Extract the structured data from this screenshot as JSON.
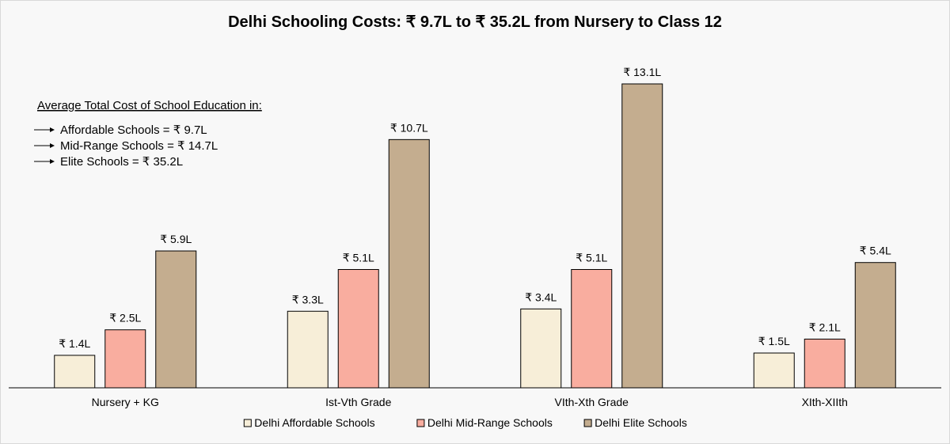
{
  "chart_data": {
    "type": "bar",
    "title": "Delhi Schooling Costs: ₹ 9.7L to ₹ 35.2L from Nursery to Class 12",
    "categories": [
      "Nursery + KG",
      "Ist-Vth Grade",
      "VIth-Xth Grade",
      "XIth-XIIth"
    ],
    "series": [
      {
        "name": "Delhi Affordable Schools",
        "color": "#f7eed8",
        "values": [
          1.4,
          3.3,
          3.4,
          1.5
        ],
        "labels": [
          "₹ 1.4L",
          "₹ 3.3L",
          "₹ 3.4L",
          "₹ 1.5L"
        ]
      },
      {
        "name": "Delhi Mid-Range Schools",
        "color": "#f9ad9f",
        "values": [
          2.5,
          5.1,
          5.1,
          2.1
        ],
        "labels": [
          "₹ 2.5L",
          "₹ 5.1L",
          "₹ 5.1L",
          "₹ 2.1L"
        ]
      },
      {
        "name": "Delhi Elite Schools",
        "color": "#c4ad8f",
        "values": [
          5.9,
          10.7,
          13.1,
          5.4
        ],
        "labels": [
          "₹ 5.9L",
          "₹ 10.7L",
          "₹ 13.1L",
          "₹ 5.4L"
        ]
      }
    ],
    "ylim": [
      0,
      13.1
    ],
    "xlabel": "",
    "ylabel": "",
    "grid": false,
    "legend_position": "bottom",
    "annotation": {
      "heading": "Average Total Cost of School Education  in:",
      "lines": [
        "Affordable Schools = ₹ 9.7L",
        "Mid-Range Schools = ₹ 14.7L",
        "Elite Schools = ₹ 35.2L"
      ]
    }
  }
}
